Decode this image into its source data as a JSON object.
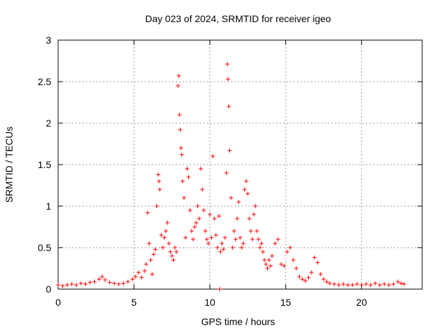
{
  "chart_data": {
    "type": "scatter",
    "title": "Day 023 of 2024, SRMTID for receiver igeo",
    "xlabel": "GPS time / hours",
    "ylabel": "SRMTID / TECUs",
    "xlim": [
      0,
      24
    ],
    "ylim": [
      0,
      3
    ],
    "xticks": [
      0,
      5,
      10,
      15,
      20
    ],
    "yticks": [
      0,
      0.5,
      1,
      1.5,
      2,
      2.5,
      3
    ],
    "xtick_labels": [
      "0",
      "5",
      "10",
      "15",
      "20"
    ],
    "ytick_labels": [
      "0",
      "0.5",
      "1",
      "1.5",
      "2",
      "2.5",
      "3"
    ],
    "grid": true,
    "marker": "+",
    "series": [
      {
        "name": "SRMTID",
        "color": "#ff0000",
        "points": [
          [
            0.0,
            0.05
          ],
          [
            0.3,
            0.04
          ],
          [
            0.6,
            0.05
          ],
          [
            0.9,
            0.06
          ],
          [
            1.2,
            0.05
          ],
          [
            1.5,
            0.07
          ],
          [
            1.8,
            0.06
          ],
          [
            2.1,
            0.08
          ],
          [
            2.4,
            0.09
          ],
          [
            2.7,
            0.12
          ],
          [
            2.9,
            0.15
          ],
          [
            3.1,
            0.11
          ],
          [
            3.4,
            0.08
          ],
          [
            3.7,
            0.07
          ],
          [
            4.0,
            0.06
          ],
          [
            4.3,
            0.07
          ],
          [
            4.6,
            0.09
          ],
          [
            4.9,
            0.12
          ],
          [
            5.1,
            0.15
          ],
          [
            5.3,
            0.2
          ],
          [
            5.5,
            0.14
          ],
          [
            5.7,
            0.22
          ],
          [
            5.8,
            0.3
          ],
          [
            5.9,
            0.92
          ],
          [
            6.0,
            0.55
          ],
          [
            6.1,
            0.35
          ],
          [
            6.2,
            0.18
          ],
          [
            6.3,
            0.42
          ],
          [
            6.4,
            0.48
          ],
          [
            6.5,
            1.0
          ],
          [
            6.6,
            1.38
          ],
          [
            6.65,
            1.3
          ],
          [
            6.7,
            1.2
          ],
          [
            6.8,
            0.65
          ],
          [
            6.9,
            0.5
          ],
          [
            7.0,
            0.62
          ],
          [
            7.1,
            0.7
          ],
          [
            7.2,
            0.8
          ],
          [
            7.3,
            0.55
          ],
          [
            7.4,
            0.45
          ],
          [
            7.5,
            0.4
          ],
          [
            7.6,
            0.35
          ],
          [
            7.7,
            0.5
          ],
          [
            7.8,
            0.45
          ],
          [
            7.9,
            2.45
          ],
          [
            7.95,
            2.57
          ],
          [
            8.0,
            2.1
          ],
          [
            8.05,
            1.92
          ],
          [
            8.1,
            1.7
          ],
          [
            8.15,
            1.62
          ],
          [
            8.2,
            1.3
          ],
          [
            8.3,
            1.1
          ],
          [
            8.4,
            0.62
          ],
          [
            8.5,
            1.45
          ],
          [
            8.6,
            1.35
          ],
          [
            8.7,
            0.95
          ],
          [
            8.8,
            0.7
          ],
          [
            8.9,
            0.6
          ],
          [
            9.0,
            0.75
          ],
          [
            9.1,
            0.8
          ],
          [
            9.2,
            1.0
          ],
          [
            9.3,
            0.85
          ],
          [
            9.4,
            1.45
          ],
          [
            9.5,
            1.2
          ],
          [
            9.6,
            0.95
          ],
          [
            9.7,
            0.7
          ],
          [
            9.8,
            0.6
          ],
          [
            9.9,
            0.55
          ],
          [
            10.0,
            0.9
          ],
          [
            10.1,
            0.62
          ],
          [
            10.2,
            1.6
          ],
          [
            10.3,
            0.85
          ],
          [
            10.4,
            0.65
          ],
          [
            10.5,
            0.5
          ],
          [
            10.6,
            0.88
          ],
          [
            10.65,
            0.0
          ],
          [
            10.7,
            0.45
          ],
          [
            10.8,
            0.55
          ],
          [
            10.9,
            0.48
          ],
          [
            11.0,
            0.62
          ],
          [
            11.1,
            1.4
          ],
          [
            11.15,
            2.71
          ],
          [
            11.2,
            2.53
          ],
          [
            11.25,
            2.2
          ],
          [
            11.3,
            1.67
          ],
          [
            11.4,
            1.1
          ],
          [
            11.5,
            0.5
          ],
          [
            11.6,
            0.7
          ],
          [
            11.7,
            0.6
          ],
          [
            11.8,
            0.85
          ],
          [
            11.9,
            1.05
          ],
          [
            12.0,
            0.62
          ],
          [
            12.1,
            0.5
          ],
          [
            12.2,
            0.55
          ],
          [
            12.3,
            1.2
          ],
          [
            12.4,
            1.3
          ],
          [
            12.5,
            1.15
          ],
          [
            12.6,
            0.85
          ],
          [
            12.7,
            0.7
          ],
          [
            12.8,
            0.6
          ],
          [
            12.9,
            0.9
          ],
          [
            13.0,
            1.0
          ],
          [
            13.1,
            0.7
          ],
          [
            13.2,
            0.6
          ],
          [
            13.3,
            0.5
          ],
          [
            13.4,
            0.55
          ],
          [
            13.5,
            0.45
          ],
          [
            13.6,
            0.35
          ],
          [
            13.7,
            0.3
          ],
          [
            13.8,
            0.25
          ],
          [
            13.9,
            0.35
          ],
          [
            14.0,
            0.28
          ],
          [
            14.1,
            0.4
          ],
          [
            14.3,
            0.55
          ],
          [
            14.5,
            0.6
          ],
          [
            14.7,
            0.3
          ],
          [
            14.9,
            0.28
          ],
          [
            15.1,
            0.45
          ],
          [
            15.3,
            0.5
          ],
          [
            15.5,
            0.35
          ],
          [
            15.7,
            0.25
          ],
          [
            15.9,
            0.15
          ],
          [
            16.1,
            0.12
          ],
          [
            16.3,
            0.1
          ],
          [
            16.5,
            0.14
          ],
          [
            16.7,
            0.2
          ],
          [
            16.9,
            0.38
          ],
          [
            17.1,
            0.32
          ],
          [
            17.3,
            0.18
          ],
          [
            17.5,
            0.12
          ],
          [
            17.7,
            0.09
          ],
          [
            17.9,
            0.07
          ],
          [
            18.2,
            0.06
          ],
          [
            18.5,
            0.05
          ],
          [
            18.8,
            0.06
          ],
          [
            19.1,
            0.05
          ],
          [
            19.4,
            0.05
          ],
          [
            19.7,
            0.06
          ],
          [
            20.0,
            0.05
          ],
          [
            20.3,
            0.06
          ],
          [
            20.6,
            0.05
          ],
          [
            20.9,
            0.07
          ],
          [
            21.2,
            0.05
          ],
          [
            21.5,
            0.06
          ],
          [
            21.8,
            0.05
          ],
          [
            22.1,
            0.06
          ],
          [
            22.4,
            0.09
          ],
          [
            22.6,
            0.07
          ],
          [
            22.8,
            0.06
          ]
        ]
      }
    ]
  }
}
